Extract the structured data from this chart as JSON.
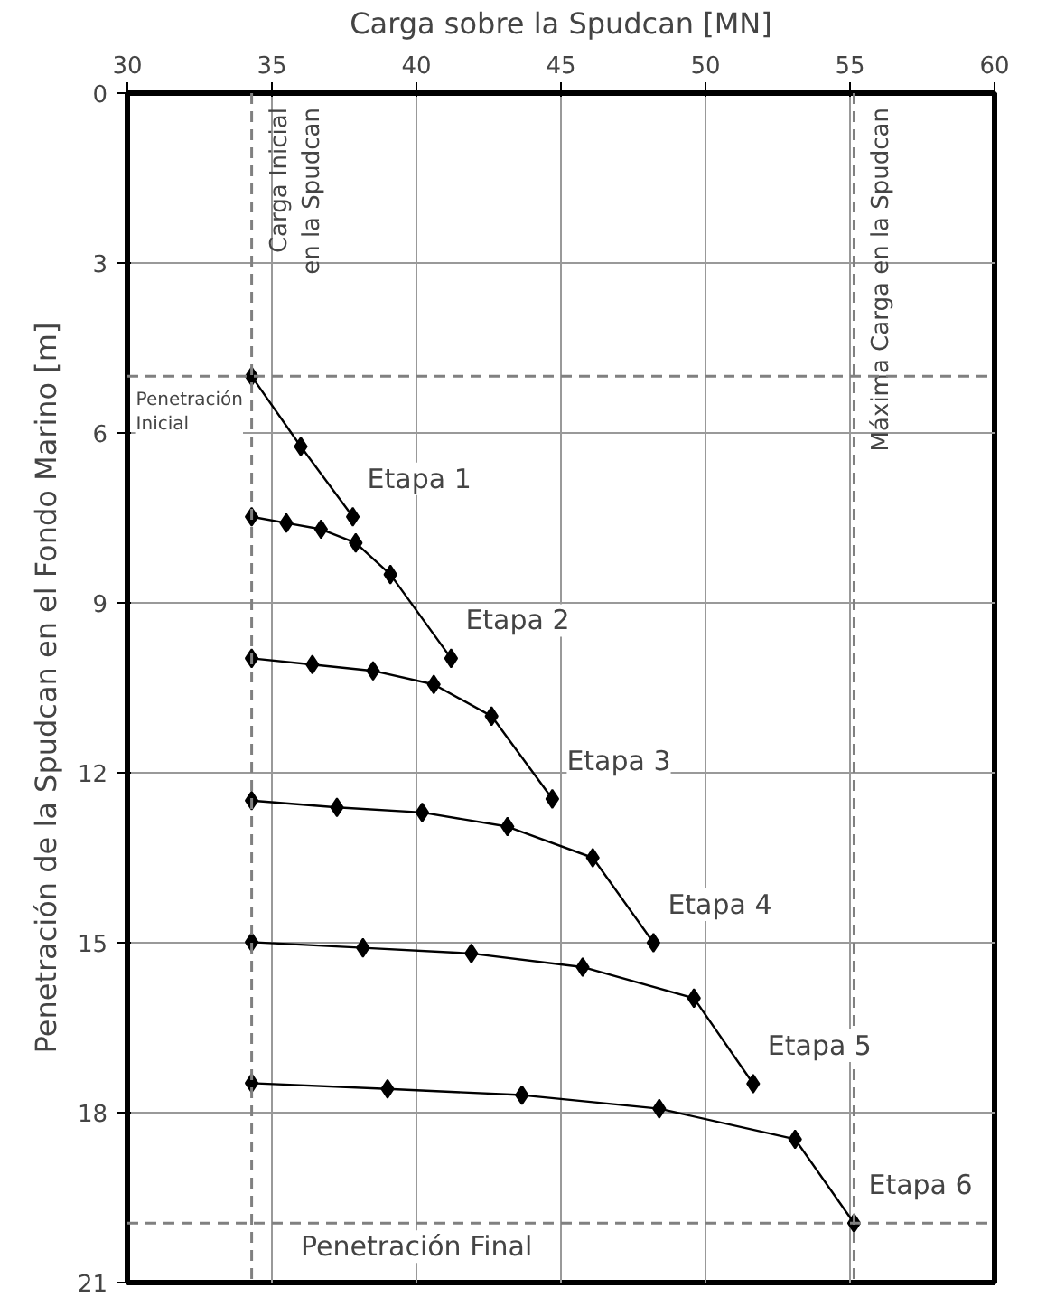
{
  "chart_data": {
    "type": "line",
    "xlabel": "Carga sobre la Spudcan [MN]",
    "ylabel": "Penetración de la Spudcan en el Fondo Marino [m]",
    "xlim": [
      30,
      60
    ],
    "xticks": [
      30,
      35,
      40,
      45,
      50,
      55,
      60
    ],
    "ylim": [
      21,
      0
    ],
    "yticks": [
      0,
      3,
      6,
      9,
      12,
      15,
      18,
      21
    ],
    "grid": true,
    "marker": "diamond",
    "line_style": "solid",
    "series": [
      {
        "name": "Etapa 1",
        "color": "#000000",
        "x": [
          34.3,
          36.0,
          37.8
        ],
        "values": [
          5.0,
          6.24,
          7.48
        ]
      },
      {
        "name": "Etapa 2",
        "color": "#000000",
        "x": [
          34.3,
          35.5,
          36.7,
          37.9,
          39.1,
          41.2
        ],
        "values": [
          7.48,
          7.59,
          7.7,
          7.94,
          8.5,
          9.98
        ]
      },
      {
        "name": "Etapa 3",
        "color": "#000000",
        "x": [
          34.3,
          36.4,
          38.5,
          40.6,
          42.6,
          44.7
        ],
        "values": [
          9.98,
          10.09,
          10.2,
          10.44,
          11.0,
          12.46
        ]
      },
      {
        "name": "Etapa 4",
        "color": "#000000",
        "x": [
          34.3,
          37.25,
          40.2,
          43.15,
          46.1,
          48.2
        ],
        "values": [
          12.49,
          12.61,
          12.7,
          12.95,
          13.5,
          15.0
        ]
      },
      {
        "name": "Etapa 5",
        "color": "#000000",
        "x": [
          34.3,
          38.15,
          41.9,
          45.75,
          49.6,
          51.65
        ],
        "values": [
          14.99,
          15.09,
          15.19,
          15.43,
          15.98,
          17.49
        ]
      },
      {
        "name": "Etapa 6",
        "color": "#000000",
        "x": [
          34.3,
          39.0,
          43.65,
          48.4,
          53.1,
          55.14
        ],
        "values": [
          17.48,
          17.58,
          17.69,
          17.93,
          18.47,
          19.95
        ]
      }
    ],
    "ref_lines": [
      {
        "axis": "x",
        "value": 34.3,
        "label": "Carga Inicial\nen la Spudcan",
        "color": "#808080",
        "line_style": "dashed"
      },
      {
        "axis": "x",
        "value": 55.14,
        "label": "Máxima Carga en la Spudcan",
        "color": "#808080",
        "line_style": "dashed"
      },
      {
        "axis": "y",
        "value": 5.0,
        "label": "Penetración\nInicial",
        "color": "#808080",
        "line_style": "dashed"
      },
      {
        "axis": "y",
        "value": 19.95,
        "label": "Penetración Final",
        "color": "#808080",
        "line_style": "dashed"
      }
    ]
  }
}
